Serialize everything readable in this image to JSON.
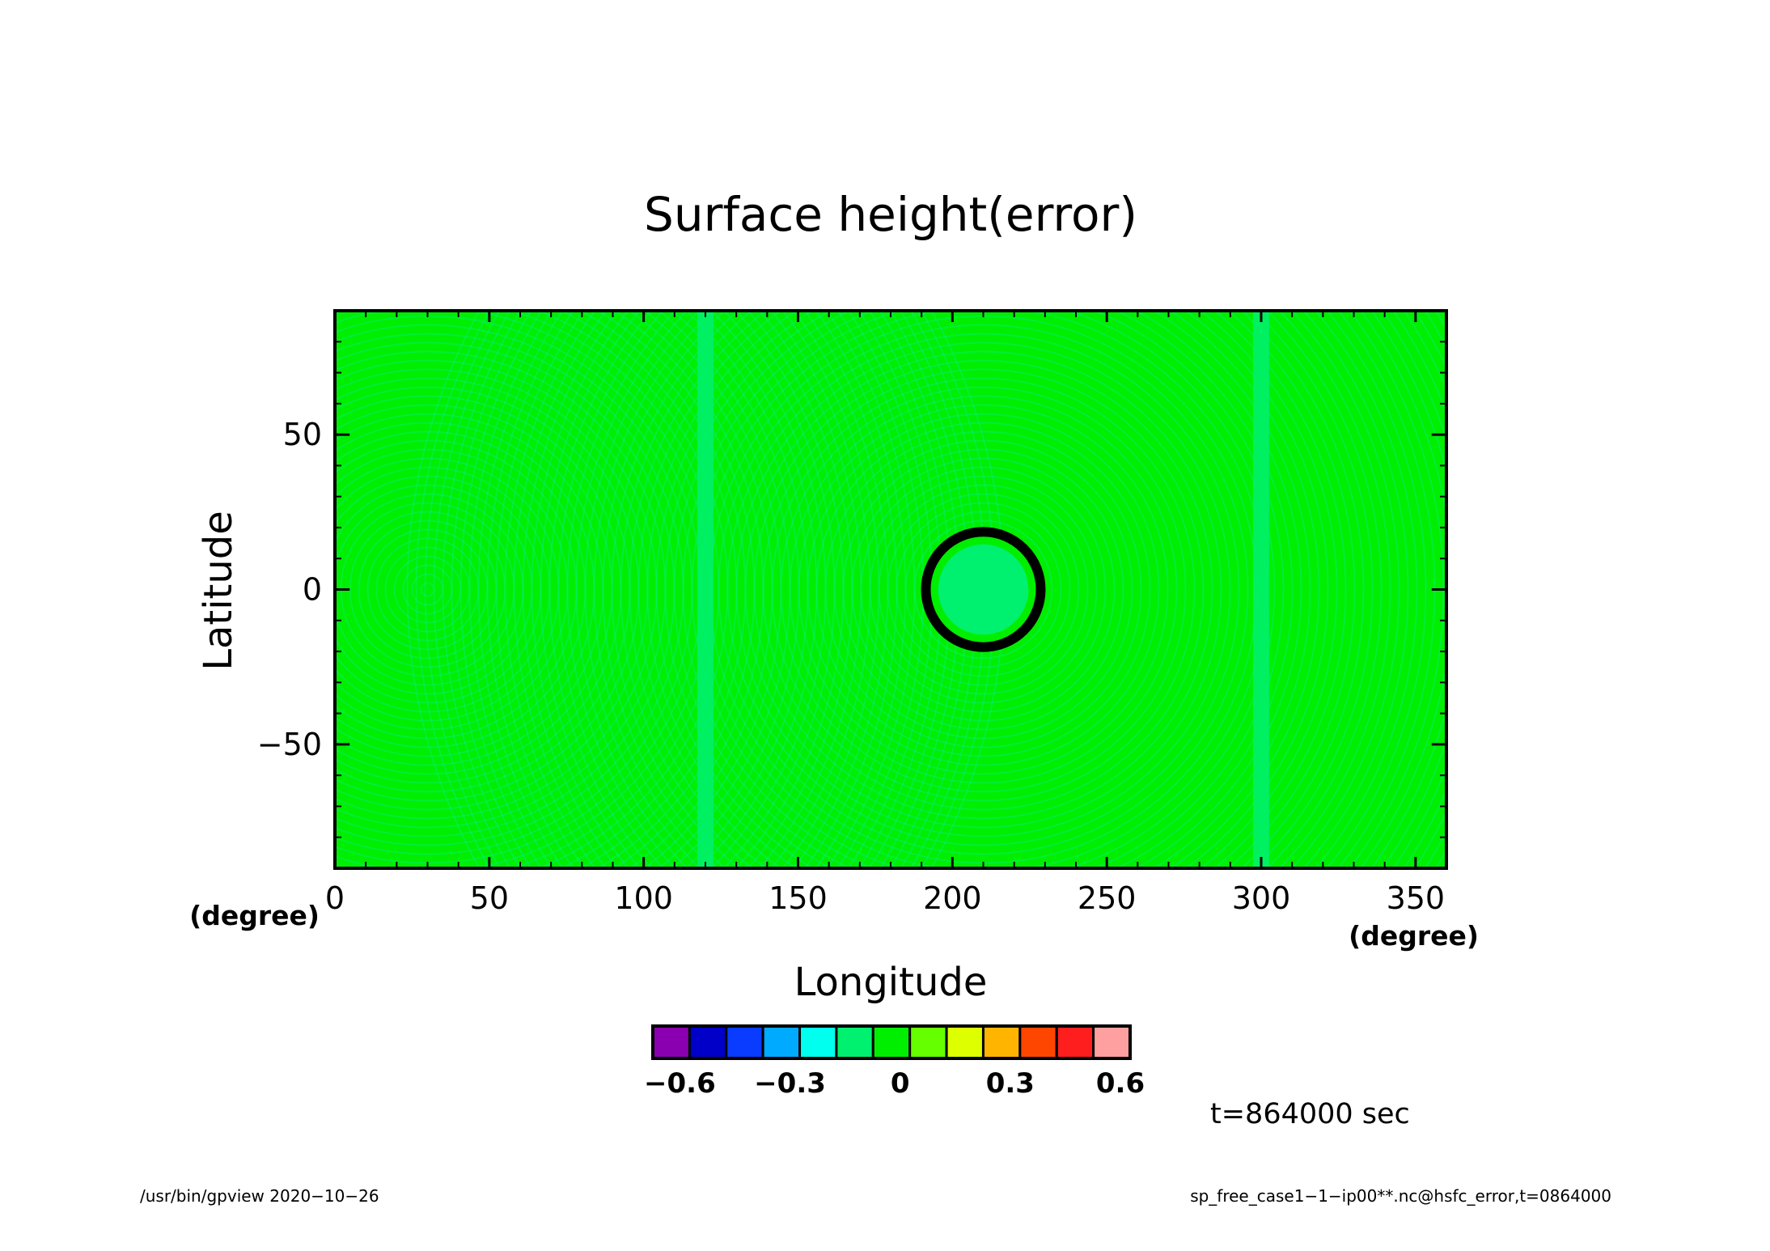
{
  "chart_data": {
    "type": "heatmap",
    "title": "Surface height(error)",
    "xlabel": "Longitude",
    "ylabel": "Latitude",
    "x_unit": "(degree)",
    "y_unit": "(degree)",
    "xlim": [
      0,
      360
    ],
    "ylim": [
      -90,
      90
    ],
    "x_ticks": [
      0,
      50,
      100,
      150,
      200,
      250,
      300,
      350
    ],
    "y_ticks": [
      -50,
      0,
      50
    ],
    "x_tick_labels": [
      "0",
      "50",
      "100",
      "150",
      "200",
      "250",
      "300",
      "350"
    ],
    "y_tick_labels": [
      "−50",
      "0",
      "50"
    ],
    "background_level_color": "#00ee00",
    "pattern_level_color": "#00f070",
    "circle": {
      "center_lon": 210,
      "center_lat": 0,
      "radius_deg": 20,
      "outline_color": "#000000",
      "ring_color": "#00ee00",
      "inner_color": "#00f070"
    },
    "colorbar": {
      "levels": [
        -0.6,
        -0.5,
        -0.4,
        -0.3,
        -0.2,
        -0.1,
        0,
        0.1,
        0.2,
        0.3,
        0.4,
        0.5,
        0.6
      ],
      "colors": [
        "#8a00b0",
        "#0000c8",
        "#0a3cff",
        "#00aaff",
        "#00ffee",
        "#00f070",
        "#00ee00",
        "#66ff00",
        "#ddff00",
        "#ffb400",
        "#ff4600",
        "#ff1e1e",
        "#ffa0a0"
      ],
      "tick_values": [
        -0.6,
        -0.3,
        0,
        0.3,
        0.6
      ],
      "tick_labels": [
        "−0.6",
        "−0.3",
        "0",
        "0.3",
        "0.6"
      ]
    },
    "time_label": "t=864000 sec",
    "grid": false
  },
  "footer": {
    "left": "/usr/bin/gpview   2020−10−26",
    "right": "sp_free_case1−1−ip00**.nc@hsfc_error,t=0864000"
  }
}
